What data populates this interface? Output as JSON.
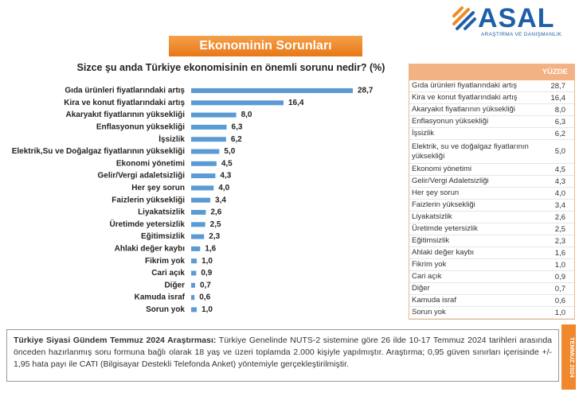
{
  "logo": {
    "name": "ASAL",
    "tagline": "ARAŞTIRMA VE DANIŞMANLIK"
  },
  "chart_data": {
    "type": "bar",
    "orientation": "horizontal",
    "title": "Ekonominin Sorunları",
    "subtitle": "Sizce şu anda Türkiye ekonomisinin  en önemli sorunu nedir? (%)",
    "color": "#5b9bd5",
    "categories": [
      "Gıda ürünleri fiyatlarındaki artış",
      "Kira ve konut fiyatlarındaki artış",
      "Akaryakıt fiyatlarının yüksekliği",
      "Enflasyonun yüksekliği",
      "İşsizlik",
      "Elektrik,Su ve Doğalgaz fiyatlarının yüksekliği",
      "Ekonomi yönetimi",
      "Gelir/Vergi adaletsizliği",
      "Her şey sorun",
      "Faizlerin yüksekliği",
      "Liyakatsizlik",
      "Üretimde yetersizlik",
      "Eğitimsizlik",
      "Ahlaki değer kaybı",
      "Fikrim yok",
      "Cari açık",
      "Diğer",
      "Kamuda israf",
      "Sorun yok"
    ],
    "values": [
      28.7,
      16.4,
      8.0,
      6.3,
      6.2,
      5.0,
      4.5,
      4.3,
      4.0,
      3.4,
      2.6,
      2.5,
      2.3,
      1.6,
      1.0,
      0.9,
      0.7,
      0.6,
      1.0
    ],
    "value_labels": [
      "28,7",
      "16,4",
      "8,0",
      "6,3",
      "6,2",
      "5,0",
      "4,5",
      "4,3",
      "4,0",
      "3,4",
      "2,6",
      "2,5",
      "2,3",
      "1,6",
      "1,0",
      "0,9",
      "0,7",
      "0,6",
      "1,0"
    ]
  },
  "table": {
    "header": "YÜZDE",
    "rows": [
      [
        "Gıda ürünleri fiyatlarındaki artış",
        "28,7"
      ],
      [
        "Kira ve konut fiyatlarındaki artış",
        "16,4"
      ],
      [
        "Akaryakıt fiyatlarının yüksekliği",
        "8,0"
      ],
      [
        "Enflasyonun yüksekliği",
        "6,3"
      ],
      [
        "İşsizlik",
        "6,2"
      ],
      [
        "Elektrik, su ve doğalgaz fiyatlarının yüksekliği",
        "5,0"
      ],
      [
        "Ekonomi yönetimi",
        "4,5"
      ],
      [
        "Gelir/Vergi Adaletsizliği",
        "4,3"
      ],
      [
        "Her şey sorun",
        "4,0"
      ],
      [
        "Faizlerin yüksekliği",
        "3,4"
      ],
      [
        "Liyakatsizlik",
        "2,6"
      ],
      [
        "Üretimde yetersizlik",
        "2,5"
      ],
      [
        "Eğitimsizlik",
        "2,3"
      ],
      [
        "Ahlaki değer kaybı",
        "1,6"
      ],
      [
        "Fikrim yok",
        "1,0"
      ],
      [
        "Cari açık",
        "0,9"
      ],
      [
        "Diğer",
        "0,7"
      ],
      [
        "Kamuda israf",
        "0,6"
      ],
      [
        "Sorun yok",
        "1,0"
      ]
    ]
  },
  "footer": {
    "title": "Türkiye Siyasi Gündem Temmuz 2024 Araştırması:",
    "text": " Türkiye Genelinde NUTS-2 sistemine göre 26 ilde 10-17 Temmuz 2024 tarihleri arasında önceden hazırlanmış soru formuna bağlı olarak 18 yaş ve üzeri toplamda 2.000 kişiyle yapılmıştır. Araştırma; 0,95 güven sınırları içerisinde +/- 1,95 hata payı ile CATI (Bilgisayar Destekli Telefonda Anket) yöntemiyle gerçekleştirilmiştir."
  },
  "side_label": "TEMMUZ 2024"
}
